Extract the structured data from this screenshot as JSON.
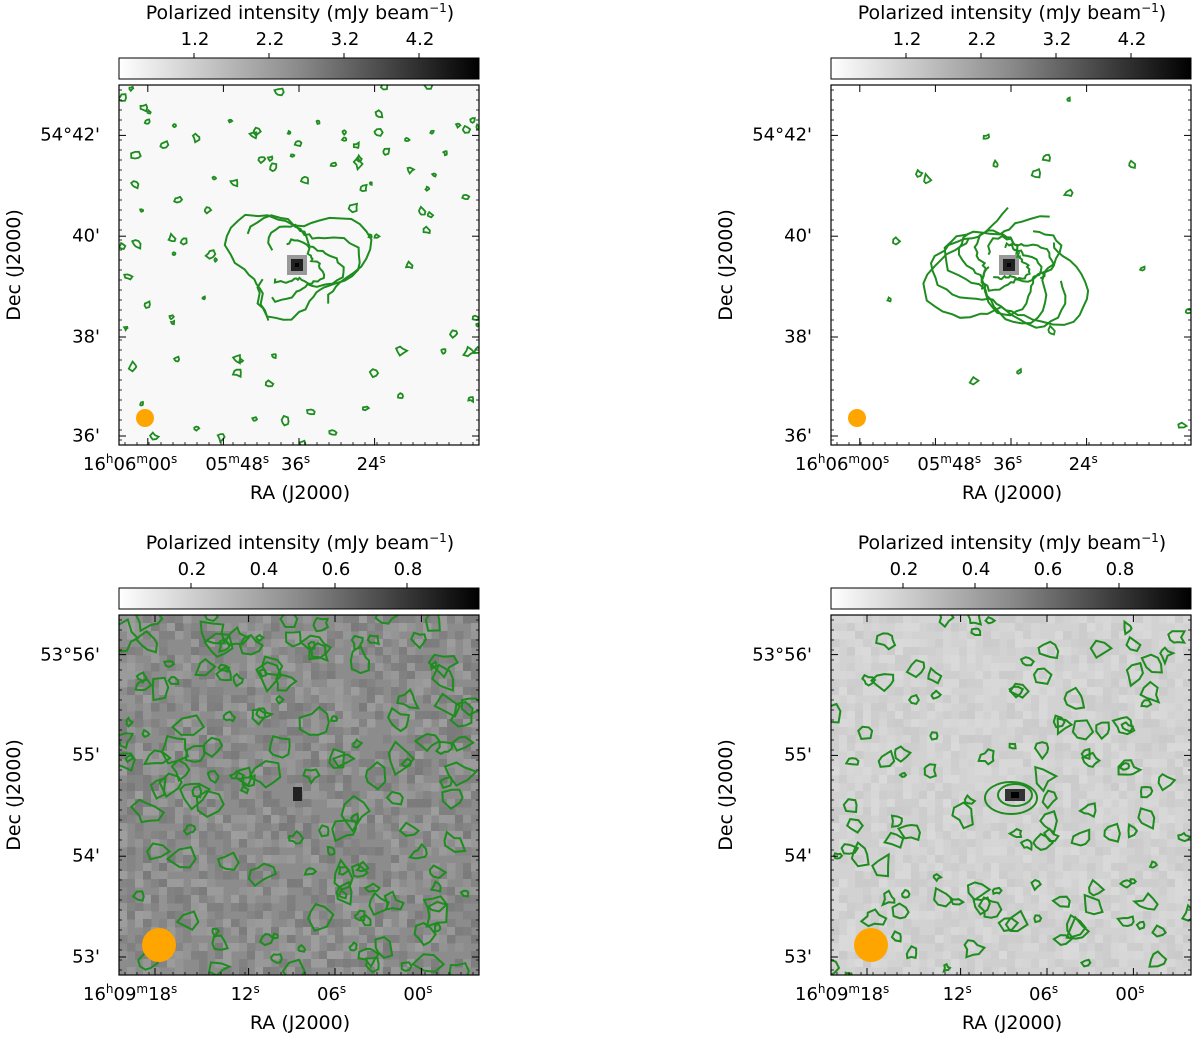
{
  "panels": [
    {
      "id": "top-left",
      "colorbar": {
        "label": "Polarized intensity (mJy beam",
        "label_exp": "−1",
        "label_end": ")",
        "ticks": [
          "1.2",
          "2.2",
          "3.2",
          "4.2"
        ],
        "tick_values": [
          1.2,
          2.2,
          3.2,
          4.2
        ],
        "range": [
          0.2,
          5.0
        ]
      },
      "ylabel": "Dec (J2000)",
      "xlabel": "RA (J2000)",
      "yticks": [
        "54°42'",
        "40'",
        "38'",
        "36'"
      ],
      "ytick_fractions": [
        0.14,
        0.42,
        0.7,
        0.975
      ],
      "xticks": [
        {
          "h": "16",
          "hu": "h",
          "m": "06",
          "mu": "m",
          "s": "00",
          "su": "s"
        },
        {
          "h": "",
          "hu": "",
          "m": "05",
          "mu": "m",
          "s": "48",
          "su": "s"
        },
        {
          "h": "",
          "hu": "",
          "m": "",
          "mu": "",
          "s": "36",
          "su": "s"
        },
        {
          "h": "",
          "hu": "",
          "m": "",
          "mu": "",
          "s": "24",
          "su": "s"
        }
      ],
      "xtick_fractions": [
        0.08,
        0.29,
        0.5,
        0.71
      ],
      "background": "#f8f8f8",
      "beam_color": "#ffa500"
    },
    {
      "id": "top-right",
      "colorbar": {
        "label": "Polarized intensity (mJy beam",
        "label_exp": "−1",
        "label_end": ")",
        "ticks": [
          "1.2",
          "2.2",
          "3.2",
          "4.2"
        ],
        "tick_values": [
          1.2,
          2.2,
          3.2,
          4.2
        ],
        "range": [
          0.2,
          5.0
        ]
      },
      "ylabel": "Dec (J2000)",
      "xlabel": "RA (J2000)",
      "yticks": [
        "54°42'",
        "40'",
        "38'",
        "36'"
      ],
      "ytick_fractions": [
        0.14,
        0.42,
        0.7,
        0.975
      ],
      "xticks": [
        {
          "h": "16",
          "hu": "h",
          "m": "06",
          "mu": "m",
          "s": "00",
          "su": "s"
        },
        {
          "h": "",
          "hu": "",
          "m": "05",
          "mu": "m",
          "s": "48",
          "su": "s"
        },
        {
          "h": "",
          "hu": "",
          "m": "",
          "mu": "",
          "s": "36",
          "su": "s"
        },
        {
          "h": "",
          "hu": "",
          "m": "",
          "mu": "",
          "s": "24",
          "su": "s"
        }
      ],
      "xtick_fractions": [
        0.08,
        0.29,
        0.5,
        0.71
      ],
      "background": "#ffffff",
      "beam_color": "#ffa500"
    },
    {
      "id": "bottom-left",
      "colorbar": {
        "label": "Polarized intensity (mJy beam",
        "label_exp": "−1",
        "label_end": ")",
        "ticks": [
          "0.2",
          "0.4",
          "0.6",
          "0.8"
        ],
        "tick_values": [
          0.2,
          0.4,
          0.6,
          0.8
        ],
        "range": [
          0.0,
          1.0
        ]
      },
      "ylabel": "Dec (J2000)",
      "xlabel": "RA (J2000)",
      "yticks": [
        "53°56'",
        "55'",
        "54'",
        "53'"
      ],
      "ytick_fractions": [
        0.11,
        0.39,
        0.67,
        0.95
      ],
      "xticks": [
        {
          "h": "16",
          "hu": "h",
          "m": "09",
          "mu": "m",
          "s": "18",
          "su": "s"
        },
        {
          "h": "",
          "hu": "",
          "m": "",
          "mu": "",
          "s": "12",
          "su": "s"
        },
        {
          "h": "",
          "hu": "",
          "m": "",
          "mu": "",
          "s": "06",
          "su": "s"
        },
        {
          "h": "",
          "hu": "",
          "m": "",
          "mu": "",
          "s": "00",
          "su": "s"
        }
      ],
      "xtick_fractions": [
        0.1,
        0.36,
        0.6,
        0.84
      ],
      "background": "#8c8c8c",
      "beam_color": "#ffa500"
    },
    {
      "id": "bottom-right",
      "colorbar": {
        "label": "Polarized intensity (mJy beam",
        "label_exp": "−1",
        "label_end": ")",
        "ticks": [
          "0.2",
          "0.4",
          "0.6",
          "0.8"
        ],
        "tick_values": [
          0.2,
          0.4,
          0.6,
          0.8
        ],
        "range": [
          0.0,
          1.0
        ]
      },
      "ylabel": "Dec (J2000)",
      "xlabel": "RA (J2000)",
      "yticks": [
        "53°56'",
        "55'",
        "54'",
        "53'"
      ],
      "ytick_fractions": [
        0.11,
        0.39,
        0.67,
        0.95
      ],
      "xticks": [
        {
          "h": "16",
          "hu": "h",
          "m": "09",
          "mu": "m",
          "s": "18",
          "su": "s"
        },
        {
          "h": "",
          "hu": "",
          "m": "",
          "mu": "",
          "s": "12",
          "su": "s"
        },
        {
          "h": "",
          "hu": "",
          "m": "",
          "mu": "",
          "s": "06",
          "su": "s"
        },
        {
          "h": "",
          "hu": "",
          "m": "",
          "mu": "",
          "s": "00",
          "su": "s"
        }
      ],
      "xtick_fractions": [
        0.1,
        0.36,
        0.6,
        0.84
      ],
      "background": "#d2d2d2",
      "beam_color": "#ffa500"
    }
  ],
  "colors": {
    "contour": "#1e8c1e",
    "frame": "#000000"
  },
  "chart_data": [
    {
      "type": "heatmap",
      "title": "",
      "xlabel": "RA (J2000)",
      "ylabel": "Dec (J2000)",
      "colorbar_label": "Polarized intensity (mJy beam−1)",
      "colorbar_ticks": [
        1.2,
        2.2,
        3.2,
        4.2
      ],
      "y_ticks": [
        "54°42'",
        "40'",
        "38'",
        "36'"
      ],
      "x_ticks": [
        "16h06m00s",
        "05m48s",
        "36s",
        "24s"
      ],
      "contours": "green, faint spiral around central source"
    },
    {
      "type": "heatmap",
      "title": "",
      "xlabel": "RA (J2000)",
      "ylabel": "Dec (J2000)",
      "colorbar_label": "Polarized intensity (mJy beam−1)",
      "colorbar_ticks": [
        1.2,
        2.2,
        3.2,
        4.2
      ],
      "y_ticks": [
        "54°42'",
        "40'",
        "38'",
        "36'"
      ],
      "x_ticks": [
        "16h06m00s",
        "05m48s",
        "36s",
        "24s"
      ],
      "contours": "green, dense spiral around central source"
    },
    {
      "type": "heatmap",
      "title": "",
      "xlabel": "RA (J2000)",
      "ylabel": "Dec (J2000)",
      "colorbar_label": "Polarized intensity (mJy beam−1)",
      "colorbar_ticks": [
        0.2,
        0.4,
        0.6,
        0.8
      ],
      "y_ticks": [
        "53°56'",
        "55'",
        "54'",
        "53'"
      ],
      "x_ticks": [
        "16h09m18s",
        "12s",
        "06s",
        "00s"
      ],
      "contours": "green, noise-dominated"
    },
    {
      "type": "heatmap",
      "title": "",
      "xlabel": "RA (J2000)",
      "ylabel": "Dec (J2000)",
      "colorbar_label": "Polarized intensity (mJy beam−1)",
      "colorbar_ticks": [
        0.2,
        0.4,
        0.6,
        0.8
      ],
      "y_ticks": [
        "53°56'",
        "55'",
        "54'",
        "53'"
      ],
      "x_ticks": [
        "16h09m18s",
        "12s",
        "06s",
        "00s"
      ],
      "contours": "green, compact central source"
    }
  ]
}
